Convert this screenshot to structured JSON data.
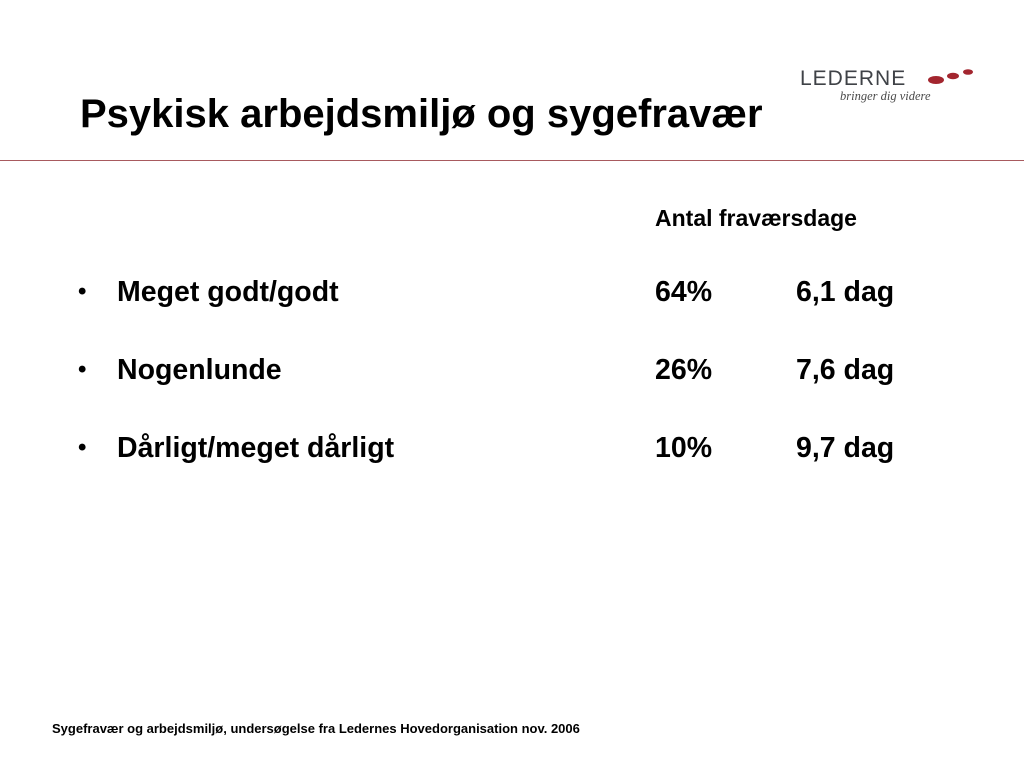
{
  "logo": {
    "wordmark": "LEDERNE",
    "tagline": "bringer dig videre",
    "accent_color": "#a3262f",
    "text_color": "#3f4247"
  },
  "title": "Psykisk arbejdsmiljø og sygefravær",
  "column_header": "Antal fraværsdage",
  "rows": [
    {
      "bullet": "•",
      "label": "Meget godt/godt",
      "percent": "64%",
      "days": "6,1 dag"
    },
    {
      "bullet": "•",
      "label": "Nogenlunde",
      "percent": "26%",
      "days": "7,6 dag"
    },
    {
      "bullet": "•",
      "label": "Dårligt/meget dårligt",
      "percent": "10%",
      "days": "9,7 dag"
    }
  ],
  "footer": "Sygefravær og arbejdsmiljø, undersøgelse fra Ledernes Hovedorganisation nov. 2006",
  "colors": {
    "divider": "#a85a5e",
    "text": "#000000",
    "background": "#ffffff"
  }
}
